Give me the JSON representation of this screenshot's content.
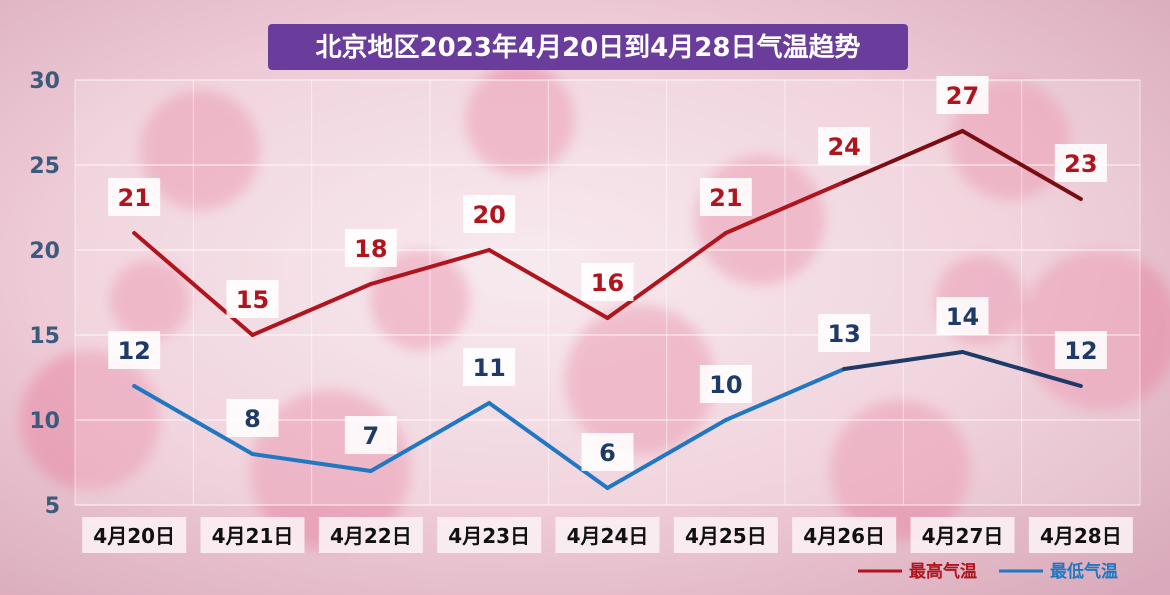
{
  "colors": {
    "high": "#b0141c",
    "high_dark": "#7a0d12",
    "low": "#1f78c1",
    "low_dark": "#1d3b66",
    "title_bg": "#6a3c9c",
    "axis_text": "#3b5a7c"
  },
  "chart_data": {
    "type": "line",
    "title": "北京地区2023年4月20日到4月28日气温趋势",
    "categories": [
      "4月20日",
      "4月21日",
      "4月22日",
      "4月23日",
      "4月24日",
      "4月25日",
      "4月26日",
      "4月27日",
      "4月28日"
    ],
    "series": [
      {
        "name": "最高气温",
        "values": [
          21,
          15,
          18,
          20,
          16,
          21,
          24,
          27,
          23
        ]
      },
      {
        "name": "最低气温",
        "values": [
          12,
          8,
          7,
          11,
          6,
          10,
          13,
          14,
          12
        ]
      }
    ],
    "ylim": [
      5,
      30
    ],
    "yticks": [
      "5",
      "10",
      "15",
      "20",
      "25",
      "30"
    ],
    "grid": true,
    "legend": "bottom-right"
  }
}
